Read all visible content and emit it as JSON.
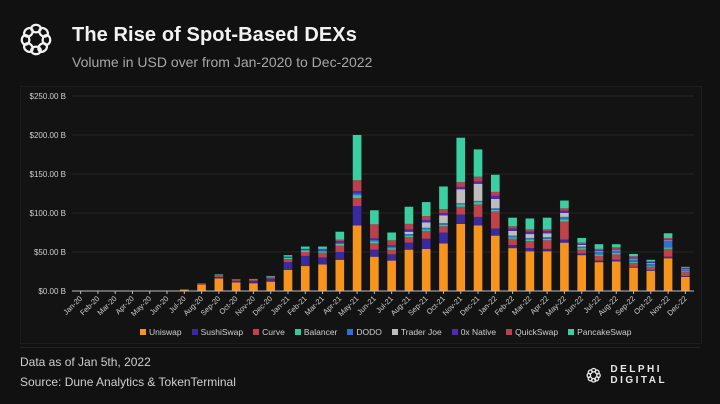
{
  "header": {
    "title": "The Rise of Spot-Based DEXs",
    "subtitle": "Volume in USD over from Jan-2020 to Dec-2022",
    "logo_icon": "delphi-knot-icon"
  },
  "footer": {
    "data_note": "Data as of Jan 5th, 2022",
    "source": "Source: Dune Analytics & TokenTerminal",
    "brand": "DELPHI DIGITAL"
  },
  "chart_data": {
    "type": "bar",
    "stacked": true,
    "title": "The Rise of Spot-Based DEXs",
    "xlabel": "",
    "ylabel": "",
    "ylim": [
      0,
      250
    ],
    "yticks": [
      0,
      50,
      100,
      150,
      200,
      250
    ],
    "ytick_labels": [
      "$0.00 B",
      "$50.00 B",
      "$100.00 B",
      "$150.00 B",
      "$200.00 B",
      "$250.00 B"
    ],
    "grid": true,
    "legend_position": "bottom",
    "categories": [
      "Jan-20",
      "Feb-20",
      "Mar-20",
      "Apr-20",
      "May-20",
      "Jun-20",
      "Jul-20",
      "Aug-20",
      "Sep-20",
      "Oct-20",
      "Nov-20",
      "Dec-20",
      "Jan-21",
      "Feb-21",
      "Mar-21",
      "Apr-21",
      "May-21",
      "Jun-21",
      "Jul-21",
      "Aug-21",
      "Sep-21",
      "Oct-21",
      "Nov-21",
      "Dec-21",
      "Jan-22",
      "Feb-22",
      "Mar-22",
      "Apr-22",
      "May-22",
      "Jun-22",
      "Jul-22",
      "Aug-22",
      "Sep-22",
      "Oct-22",
      "Nov-22",
      "Dec-22"
    ],
    "series": [
      {
        "name": "Uniswap",
        "color": "#F7941D",
        "values": [
          0.3,
          0.3,
          0.3,
          0.3,
          0.3,
          0.4,
          1.5,
          8,
          16,
          11,
          10,
          12,
          27,
          32,
          34,
          40,
          84,
          44,
          39,
          53,
          54,
          61,
          86,
          84,
          71,
          55,
          51,
          51,
          62,
          46,
          37,
          38,
          30,
          26,
          42,
          18
        ]
      },
      {
        "name": "SushiSwap",
        "color": "#3B2A9E",
        "values": [
          0,
          0,
          0,
          0,
          0,
          0,
          0,
          0,
          2,
          2,
          3,
          4,
          10,
          13,
          9,
          10,
          25,
          9,
          8,
          9,
          13,
          14,
          12,
          11,
          9,
          4,
          4,
          3,
          4,
          2,
          2,
          2,
          1,
          1,
          2,
          1
        ]
      },
      {
        "name": "Curve",
        "color": "#C0434B",
        "values": [
          0,
          0,
          0,
          0,
          0,
          0,
          0.3,
          1,
          2.5,
          1.5,
          2,
          2.5,
          4,
          5,
          6,
          8,
          10,
          8,
          6,
          7,
          10,
          8,
          10,
          16,
          22,
          8,
          9,
          11,
          23,
          5,
          6,
          7,
          5,
          4,
          10,
          5
        ]
      },
      {
        "name": "Balancer",
        "color": "#35C9A0",
        "values": [
          0,
          0,
          0,
          0,
          0,
          0,
          0.1,
          0.5,
          0.8,
          0.5,
          0.5,
          0.8,
          1.5,
          2,
          2,
          2.5,
          4,
          2.5,
          2,
          2,
          2,
          2,
          3,
          3,
          2,
          2,
          2,
          2,
          3,
          2,
          2,
          2,
          1.5,
          1,
          2,
          1
        ]
      },
      {
        "name": "DODO",
        "color": "#2F6FD0",
        "values": [
          0,
          0,
          0,
          0,
          0,
          0,
          0,
          0,
          0,
          0,
          0,
          0,
          0.5,
          1,
          1,
          1.5,
          2,
          2,
          2,
          2,
          2,
          2,
          1.5,
          1.5,
          2,
          2,
          2,
          2,
          3,
          2,
          3,
          3,
          3,
          3,
          8,
          3
        ]
      },
      {
        "name": "Trader Joe",
        "color": "#BDBDBD",
        "values": [
          0,
          0,
          0,
          0,
          0,
          0,
          0,
          0,
          0,
          0,
          0,
          0,
          0,
          0,
          0,
          0,
          0,
          0,
          0,
          3,
          7,
          10,
          18,
          22,
          12,
          6,
          5,
          5,
          5,
          2,
          1,
          1,
          1,
          1,
          1,
          0.5
        ]
      },
      {
        "name": "0x Native",
        "color": "#4B2DB0",
        "values": [
          0,
          0,
          0,
          0,
          0,
          0,
          0,
          0,
          0,
          0,
          0,
          0,
          1,
          1,
          1,
          2,
          3,
          2,
          2,
          3,
          3,
          3,
          3,
          3,
          4,
          3,
          3,
          3,
          3,
          1,
          1,
          1,
          1,
          1,
          1,
          0.5
        ]
      },
      {
        "name": "QuickSwap",
        "color": "#B9414E",
        "values": [
          0,
          0,
          0,
          0,
          0,
          0,
          0,
          0,
          0,
          0,
          0,
          0,
          0,
          0,
          1,
          2,
          14,
          18,
          6,
          7,
          5,
          5,
          6,
          6,
          5,
          3,
          3,
          2,
          3,
          2,
          2,
          2,
          2,
          1,
          2,
          1
        ]
      },
      {
        "name": "PancakeSwap",
        "color": "#3ACFA0",
        "values": [
          0,
          0,
          0,
          0,
          0,
          0,
          0,
          0,
          0,
          0,
          0,
          0,
          2,
          3,
          3,
          10,
          58,
          18,
          10,
          22,
          18,
          29,
          57,
          35,
          22,
          11,
          14,
          15,
          10,
          6,
          6,
          4,
          3,
          2,
          6,
          1
        ]
      }
    ]
  }
}
